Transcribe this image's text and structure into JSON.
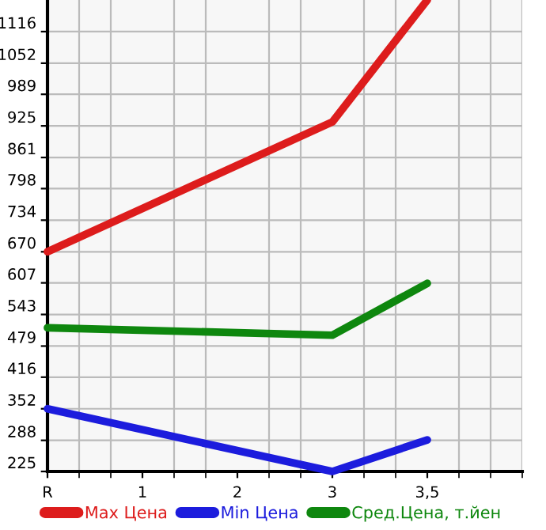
{
  "chart_data": {
    "type": "line",
    "categories": [
      "R",
      "1",
      "2",
      "3",
      "3,5"
    ],
    "series": [
      {
        "name": "Max Цена",
        "color": "#dd1c1c",
        "values": [
          670,
          null,
          null,
          933,
          1180
        ]
      },
      {
        "name": "Min Цена",
        "color": "#1c1cdd",
        "values": [
          352,
          null,
          null,
          225,
          289
        ]
      },
      {
        "name": "Сред.Цена, т.йен",
        "color": "#0e870e",
        "values": [
          516,
          null,
          null,
          501,
          606
        ]
      }
    ],
    "ylim": [
      225,
      1180
    ],
    "yticks": [
      225,
      288,
      352,
      416,
      479,
      543,
      607,
      670,
      734,
      798,
      861,
      925,
      989,
      1052,
      1116
    ],
    "grid": true,
    "legend": "bottom",
    "marker": "none",
    "line_style": "solid"
  }
}
